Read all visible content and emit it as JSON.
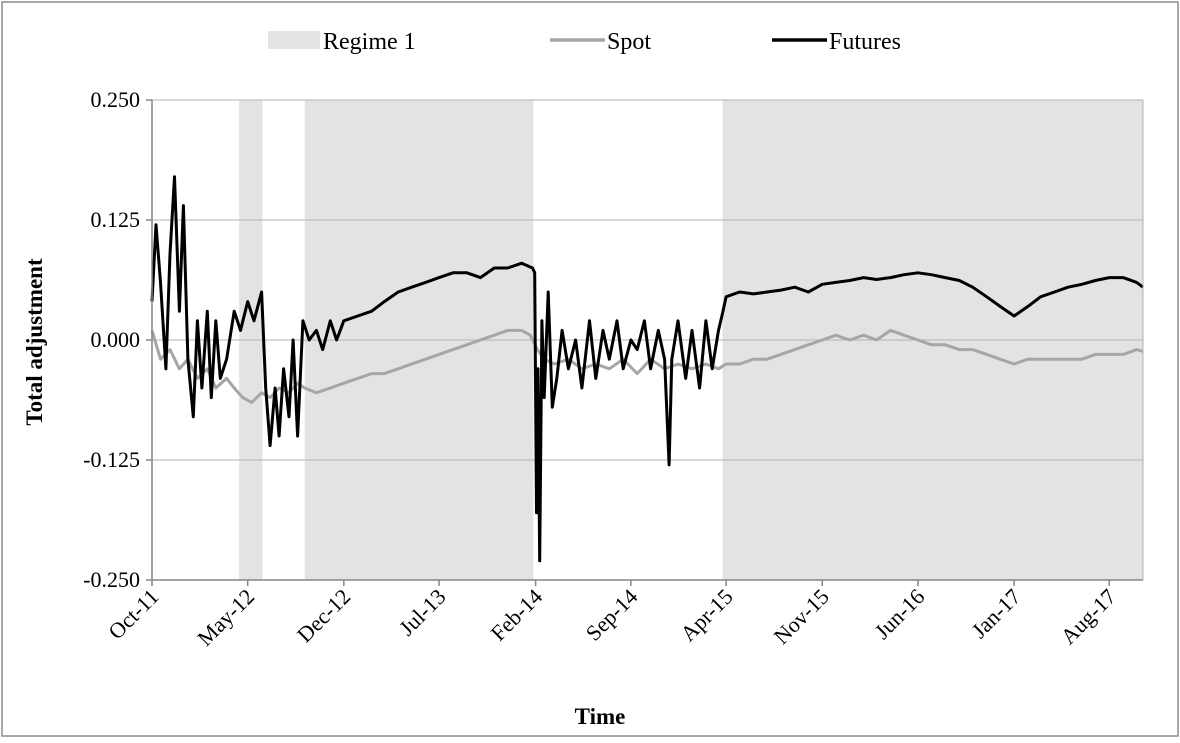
{
  "chart_data": {
    "type": "line",
    "title": "",
    "xlabel": "Time",
    "ylabel": "Total adjustment",
    "ylim": [
      -0.25,
      0.25
    ],
    "yticks": [
      "0.250",
      "0.125",
      "0.000",
      "-0.125",
      "-0.250"
    ],
    "ytick_values": [
      0.25,
      0.125,
      0.0,
      -0.125,
      -0.25
    ],
    "xlim": [
      "2011-10-01",
      "2017-10-15"
    ],
    "x_tick_labels": [
      "Oct-11",
      "May-12",
      "Dec-12",
      "Jul-13",
      "Feb-14",
      "Sep-14",
      "Apr-15",
      "Nov-15",
      "Jun-16",
      "Jan-17",
      "Aug-17"
    ],
    "x_tick_dates": [
      "2011-10-01",
      "2012-05-01",
      "2012-12-01",
      "2013-07-01",
      "2014-02-01",
      "2014-09-01",
      "2015-04-01",
      "2015-11-01",
      "2016-06-01",
      "2017-01-01",
      "2017-08-01"
    ],
    "grid": "horizontal",
    "legend_position": "top",
    "regime_label": "Regime 1",
    "regime_color": "#e3e3e3",
    "regime_periods": [
      [
        "2012-04-12",
        "2012-06-03"
      ],
      [
        "2012-09-05",
        "2014-01-27"
      ],
      [
        "2015-03-24",
        "2017-10-15"
      ]
    ],
    "series": [
      {
        "name": "Spot",
        "color": "#a6a6a6",
        "x": [
          "2011-10-01",
          "2011-10-20",
          "2011-11-10",
          "2011-12-01",
          "2011-12-20",
          "2012-01-10",
          "2012-02-01",
          "2012-02-20",
          "2012-03-15",
          "2012-04-01",
          "2012-04-20",
          "2012-05-10",
          "2012-06-01",
          "2012-06-20",
          "2012-07-10",
          "2012-08-01",
          "2012-08-20",
          "2012-09-05",
          "2012-10-01",
          "2012-11-01",
          "2012-12-01",
          "2013-01-01",
          "2013-02-01",
          "2013-03-01",
          "2013-04-01",
          "2013-05-01",
          "2013-06-01",
          "2013-07-01",
          "2013-08-01",
          "2013-09-01",
          "2013-10-01",
          "2013-11-01",
          "2013-12-01",
          "2014-01-01",
          "2014-01-20",
          "2014-02-05",
          "2014-02-20",
          "2014-03-15",
          "2014-04-15",
          "2014-05-15",
          "2014-06-15",
          "2014-07-15",
          "2014-08-15",
          "2014-09-15",
          "2014-10-15",
          "2014-11-15",
          "2014-12-15",
          "2015-01-15",
          "2015-02-15",
          "2015-03-15",
          "2015-04-01",
          "2015-05-01",
          "2015-06-01",
          "2015-07-01",
          "2015-08-01",
          "2015-09-01",
          "2015-10-01",
          "2015-11-01",
          "2015-12-01",
          "2016-01-01",
          "2016-02-01",
          "2016-03-01",
          "2016-04-01",
          "2016-05-01",
          "2016-06-01",
          "2016-07-01",
          "2016-08-01",
          "2016-09-01",
          "2016-10-01",
          "2016-11-01",
          "2016-12-01",
          "2017-01-01",
          "2017-02-01",
          "2017-03-01",
          "2017-04-01",
          "2017-05-01",
          "2017-06-01",
          "2017-07-01",
          "2017-08-01",
          "2017-09-01",
          "2017-10-01",
          "2017-10-15"
        ],
        "values": [
          0.01,
          -0.02,
          -0.01,
          -0.03,
          -0.02,
          -0.04,
          -0.03,
          -0.05,
          -0.04,
          -0.05,
          -0.06,
          -0.065,
          -0.055,
          -0.06,
          -0.05,
          -0.055,
          -0.045,
          -0.05,
          -0.055,
          -0.05,
          -0.045,
          -0.04,
          -0.035,
          -0.035,
          -0.03,
          -0.025,
          -0.02,
          -0.015,
          -0.01,
          -0.005,
          0.0,
          0.005,
          0.01,
          0.01,
          0.005,
          -0.01,
          -0.02,
          -0.025,
          -0.02,
          -0.03,
          -0.025,
          -0.03,
          -0.02,
          -0.035,
          -0.02,
          -0.03,
          -0.025,
          -0.03,
          -0.025,
          -0.03,
          -0.025,
          -0.025,
          -0.02,
          -0.02,
          -0.015,
          -0.01,
          -0.005,
          0.0,
          0.005,
          0.0,
          0.005,
          0.0,
          0.01,
          0.005,
          0.0,
          -0.005,
          -0.005,
          -0.01,
          -0.01,
          -0.015,
          -0.02,
          -0.025,
          -0.02,
          -0.02,
          -0.02,
          -0.02,
          -0.02,
          -0.015,
          -0.015,
          -0.015,
          -0.01,
          -0.012
        ]
      },
      {
        "name": "Futures",
        "color": "#000000",
        "x": [
          "2011-10-01",
          "2011-10-10",
          "2011-10-20",
          "2011-11-01",
          "2011-11-10",
          "2011-11-20",
          "2011-12-01",
          "2011-12-10",
          "2011-12-20",
          "2012-01-01",
          "2012-01-10",
          "2012-01-20",
          "2012-02-01",
          "2012-02-10",
          "2012-02-20",
          "2012-03-01",
          "2012-03-15",
          "2012-04-01",
          "2012-04-15",
          "2012-05-01",
          "2012-05-15",
          "2012-06-01",
          "2012-06-10",
          "2012-06-20",
          "2012-07-01",
          "2012-07-10",
          "2012-07-20",
          "2012-08-01",
          "2012-08-10",
          "2012-08-20",
          "2012-09-01",
          "2012-09-15",
          "2012-10-01",
          "2012-10-15",
          "2012-11-01",
          "2012-11-15",
          "2012-12-01",
          "2013-01-01",
          "2013-02-01",
          "2013-03-01",
          "2013-04-01",
          "2013-05-01",
          "2013-06-01",
          "2013-07-01",
          "2013-08-01",
          "2013-09-01",
          "2013-10-01",
          "2013-11-01",
          "2013-12-01",
          "2014-01-01",
          "2014-01-25",
          "2014-01-30",
          "2014-02-03",
          "2014-02-06",
          "2014-02-10",
          "2014-02-15",
          "2014-02-20",
          "2014-03-01",
          "2014-03-10",
          "2014-03-20",
          "2014-04-01",
          "2014-04-15",
          "2014-05-01",
          "2014-05-15",
          "2014-06-01",
          "2014-06-15",
          "2014-07-01",
          "2014-07-15",
          "2014-08-01",
          "2014-08-15",
          "2014-09-01",
          "2014-09-15",
          "2014-10-01",
          "2014-10-15",
          "2014-11-01",
          "2014-11-15",
          "2014-11-25",
          "2014-12-01",
          "2014-12-15",
          "2015-01-01",
          "2015-01-15",
          "2015-02-01",
          "2015-02-15",
          "2015-03-01",
          "2015-03-15",
          "2015-03-25",
          "2015-04-01",
          "2015-05-01",
          "2015-06-01",
          "2015-07-01",
          "2015-08-01",
          "2015-09-01",
          "2015-10-01",
          "2015-11-01",
          "2015-12-01",
          "2016-01-01",
          "2016-02-01",
          "2016-03-01",
          "2016-04-01",
          "2016-05-01",
          "2016-06-01",
          "2016-07-01",
          "2016-08-01",
          "2016-09-01",
          "2016-10-01",
          "2016-11-01",
          "2016-12-01",
          "2017-01-01",
          "2017-02-01",
          "2017-03-01",
          "2017-04-01",
          "2017-05-01",
          "2017-06-01",
          "2017-07-01",
          "2017-08-01",
          "2017-09-01",
          "2017-10-01",
          "2017-10-15"
        ],
        "values": [
          0.04,
          0.12,
          0.06,
          -0.03,
          0.09,
          0.17,
          0.03,
          0.14,
          -0.02,
          -0.08,
          0.02,
          -0.05,
          0.03,
          -0.06,
          0.02,
          -0.04,
          -0.02,
          0.03,
          0.01,
          0.04,
          0.02,
          0.05,
          -0.05,
          -0.11,
          -0.05,
          -0.1,
          -0.03,
          -0.08,
          0.0,
          -0.1,
          0.02,
          0.0,
          0.01,
          -0.01,
          0.02,
          0.0,
          0.02,
          0.025,
          0.03,
          0.04,
          0.05,
          0.055,
          0.06,
          0.065,
          0.07,
          0.07,
          0.065,
          0.075,
          0.075,
          0.08,
          0.075,
          0.07,
          -0.18,
          -0.03,
          -0.23,
          0.02,
          -0.06,
          0.05,
          -0.07,
          -0.04,
          0.01,
          -0.03,
          0.0,
          -0.05,
          0.02,
          -0.04,
          0.01,
          -0.02,
          0.02,
          -0.03,
          0.0,
          -0.01,
          0.02,
          -0.03,
          0.01,
          -0.02,
          -0.13,
          -0.02,
          0.02,
          -0.04,
          0.01,
          -0.05,
          0.02,
          -0.03,
          0.01,
          0.03,
          0.045,
          0.05,
          0.048,
          0.05,
          0.052,
          0.055,
          0.05,
          0.058,
          0.06,
          0.062,
          0.065,
          0.063,
          0.065,
          0.068,
          0.07,
          0.068,
          0.065,
          0.062,
          0.055,
          0.045,
          0.035,
          0.025,
          0.035,
          0.045,
          0.05,
          0.055,
          0.058,
          0.062,
          0.065,
          0.065,
          0.06,
          0.055
        ]
      }
    ]
  }
}
